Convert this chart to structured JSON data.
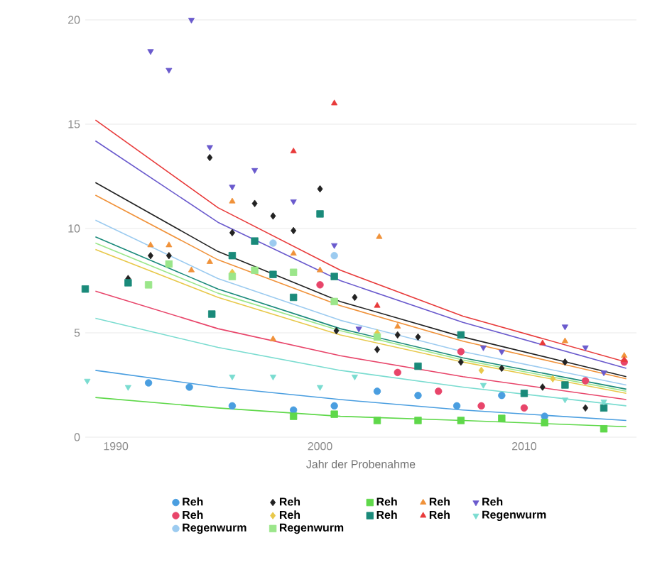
{
  "chart_data": {
    "type": "scatter",
    "xlabel": "Jahr der Probenahme",
    "xlim": [
      1988.5,
      2015.5
    ],
    "xticks": [
      1990,
      2000,
      2010
    ],
    "ylim": [
      0,
      20
    ],
    "yticks": [
      0,
      5,
      10,
      15,
      20
    ],
    "grid": "y",
    "legend": "bottom",
    "series": [
      {
        "name": "Reh",
        "color": "#4a9ee0",
        "marker": "circle",
        "x": [
          1991.6,
          1993.6,
          1995.7,
          1998.7,
          2000.7,
          2002.8,
          2004.8,
          2006.7,
          2008.9,
          2011
        ],
        "values": [
          2.6,
          2.4,
          1.5,
          1.3,
          1.5,
          2.2,
          2.0,
          1.5,
          2.0,
          1.0
        ]
      },
      {
        "name": "Reh",
        "color": "#222222",
        "marker": "diamond",
        "x": [
          1990.6,
          1991.7,
          1992.6,
          1994.6,
          1995.7,
          1996.8,
          1997.7,
          1998.7,
          2000,
          2000.8,
          2001.7,
          2002.8,
          2003.8,
          2004.8,
          2006.9,
          2008.9,
          2010.9,
          2012,
          2013
        ],
        "values": [
          7.6,
          8.7,
          8.7,
          13.4,
          9.8,
          11.2,
          10.6,
          9.9,
          11.9,
          5.1,
          6.7,
          4.2,
          4.9,
          4.8,
          3.6,
          3.3,
          2.4,
          3.6,
          1.4
        ]
      },
      {
        "name": "Reh",
        "color": "#5fd84a",
        "marker": "square",
        "x": [
          1998.7,
          2000.7,
          2002.8,
          2004.8,
          2006.9,
          2008.9,
          2011,
          2013.9
        ],
        "values": [
          1.0,
          1.1,
          0.8,
          0.8,
          0.8,
          0.9,
          0.7,
          0.4
        ]
      },
      {
        "name": "Reh",
        "color": "#f0923a",
        "marker": "triangle",
        "x": [
          1991.7,
          1992.6,
          1993.7,
          1994.6,
          1995.7,
          1997.7,
          1998.7,
          2000,
          2002.9,
          2003.8,
          2012,
          2014.9
        ],
        "values": [
          9.2,
          9.2,
          8.0,
          8.4,
          11.3,
          4.7,
          8.8,
          8.0,
          9.6,
          5.3,
          4.6,
          3.9
        ]
      },
      {
        "name": "Reh",
        "color": "#6a5acd",
        "marker": "triangle-down",
        "x": [
          1991.7,
          1992.6,
          1993.7,
          1994.6,
          1995.7,
          1996.8,
          1998.7,
          2000.7,
          2001.9,
          2008,
          2008.9,
          2012,
          2013,
          2013.9
        ],
        "values": [
          18.5,
          17.6,
          20,
          13.9,
          12.0,
          12.8,
          11.3,
          9.2,
          5.2,
          4.3,
          4.1,
          5.3,
          4.3,
          3.1
        ]
      },
      {
        "name": "Reh",
        "color": "#e8456a",
        "marker": "circle",
        "x": [
          2000,
          2003.8,
          2005.8,
          2006.9,
          2007.9,
          2010,
          2013,
          2014.9
        ],
        "values": [
          7.3,
          3.1,
          2.2,
          4.1,
          1.5,
          1.4,
          2.7,
          3.6
        ]
      },
      {
        "name": "Reh",
        "color": "#e8c84a",
        "marker": "diamond",
        "x": [
          1995.7,
          2002.8,
          2007.9,
          2011.4
        ],
        "values": [
          7.9,
          5.0,
          3.2,
          2.8
        ]
      },
      {
        "name": "Reh",
        "color": "#1a8a7a",
        "marker": "square",
        "x": [
          1988.5,
          1990.6,
          1994.7,
          1995.7,
          1996.8,
          1997.7,
          1998.7,
          2000,
          2000.7,
          2004.8,
          2006.9,
          2010,
          2012,
          2013.9
        ],
        "values": [
          7.1,
          7.4,
          5.9,
          8.7,
          9.4,
          7.8,
          6.7,
          10.7,
          7.7,
          3.4,
          4.9,
          2.1,
          2.5,
          1.4
        ]
      },
      {
        "name": "Reh",
        "color": "#e83a3a",
        "marker": "triangle",
        "x": [
          1998.7,
          2000.7,
          2002.8,
          2010.9,
          2014.9
        ],
        "values": [
          13.7,
          16.0,
          6.3,
          4.5,
          3.7
        ]
      },
      {
        "name": "Regenwurm",
        "color": "#7adcd0",
        "marker": "triangle-down",
        "x": [
          1988.6,
          1990.6,
          1995.7,
          1997.7,
          2000,
          2001.7,
          2008,
          2012,
          2013.9
        ],
        "values": [
          2.7,
          2.4,
          2.9,
          2.9,
          2.4,
          2.9,
          2.5,
          1.8,
          1.7
        ]
      },
      {
        "name": "Regenwurm",
        "color": "#9ccbf0",
        "marker": "circle",
        "x": [
          1997.7,
          2000.7
        ],
        "values": [
          9.3,
          8.7
        ]
      },
      {
        "name": "Regenwurm",
        "color": "#9be68a",
        "marker": "square",
        "x": [
          1991.6,
          1992.6,
          1995.7,
          1996.8,
          1998.7,
          2000.7,
          2002.8
        ],
        "values": [
          7.3,
          8.3,
          7.7,
          8.0,
          7.9,
          6.5,
          4.8
        ]
      },
      {
        "type": "line",
        "color": "#e83a3a",
        "marker": "none",
        "x": [
          1989,
          1995,
          2001,
          2007,
          2015
        ],
        "values": [
          15.2,
          11.0,
          8.0,
          5.8,
          3.6
        ]
      },
      {
        "type": "line",
        "color": "#6a5acd",
        "marker": "none",
        "x": [
          1989,
          1995,
          2001,
          2007,
          2015
        ],
        "values": [
          14.2,
          10.3,
          7.5,
          5.5,
          3.3
        ]
      },
      {
        "type": "line",
        "color": "#222222",
        "marker": "none",
        "x": [
          1989,
          1995,
          2001,
          2007,
          2015
        ],
        "values": [
          12.2,
          8.9,
          6.5,
          4.8,
          2.9
        ]
      },
      {
        "type": "line",
        "color": "#f0923a",
        "marker": "none",
        "x": [
          1989,
          1995,
          2001,
          2007,
          2015
        ],
        "values": [
          11.6,
          8.5,
          6.3,
          4.6,
          2.8
        ]
      },
      {
        "type": "line",
        "color": "#9ccbf0",
        "marker": "none",
        "x": [
          1989,
          1995,
          2001,
          2007,
          2015
        ],
        "values": [
          10.4,
          7.6,
          5.6,
          4.1,
          2.5
        ]
      },
      {
        "type": "line",
        "color": "#1a8a7a",
        "marker": "none",
        "x": [
          1989,
          1995,
          2001,
          2007,
          2015
        ],
        "values": [
          9.6,
          7.1,
          5.2,
          3.8,
          2.3
        ]
      },
      {
        "type": "line",
        "color": "#9be68a",
        "marker": "none",
        "x": [
          1989,
          1995,
          2001,
          2007,
          2015
        ],
        "values": [
          9.3,
          6.9,
          5.1,
          3.7,
          2.2
        ]
      },
      {
        "type": "line",
        "color": "#e8c84a",
        "marker": "none",
        "x": [
          1989,
          1995,
          2001,
          2007,
          2015
        ],
        "values": [
          9.0,
          6.7,
          4.9,
          3.6,
          2.1
        ]
      },
      {
        "type": "line",
        "color": "#e8456a",
        "marker": "none",
        "x": [
          1989,
          1995,
          2001,
          2007,
          2015
        ],
        "values": [
          7.0,
          5.2,
          3.9,
          2.9,
          1.8
        ]
      },
      {
        "type": "line",
        "color": "#7adcd0",
        "marker": "none",
        "x": [
          1989,
          1995,
          2001,
          2007,
          2015
        ],
        "values": [
          5.7,
          4.3,
          3.2,
          2.4,
          1.5
        ]
      },
      {
        "type": "line",
        "color": "#4a9ee0",
        "marker": "none",
        "x": [
          1989,
          1995,
          2001,
          2007,
          2015
        ],
        "values": [
          3.2,
          2.4,
          1.8,
          1.3,
          0.8
        ]
      },
      {
        "type": "line",
        "color": "#5fd84a",
        "marker": "none",
        "x": [
          1989,
          1995,
          2001,
          2007,
          2015
        ],
        "values": [
          1.9,
          1.4,
          1.0,
          0.8,
          0.5
        ]
      }
    ]
  }
}
